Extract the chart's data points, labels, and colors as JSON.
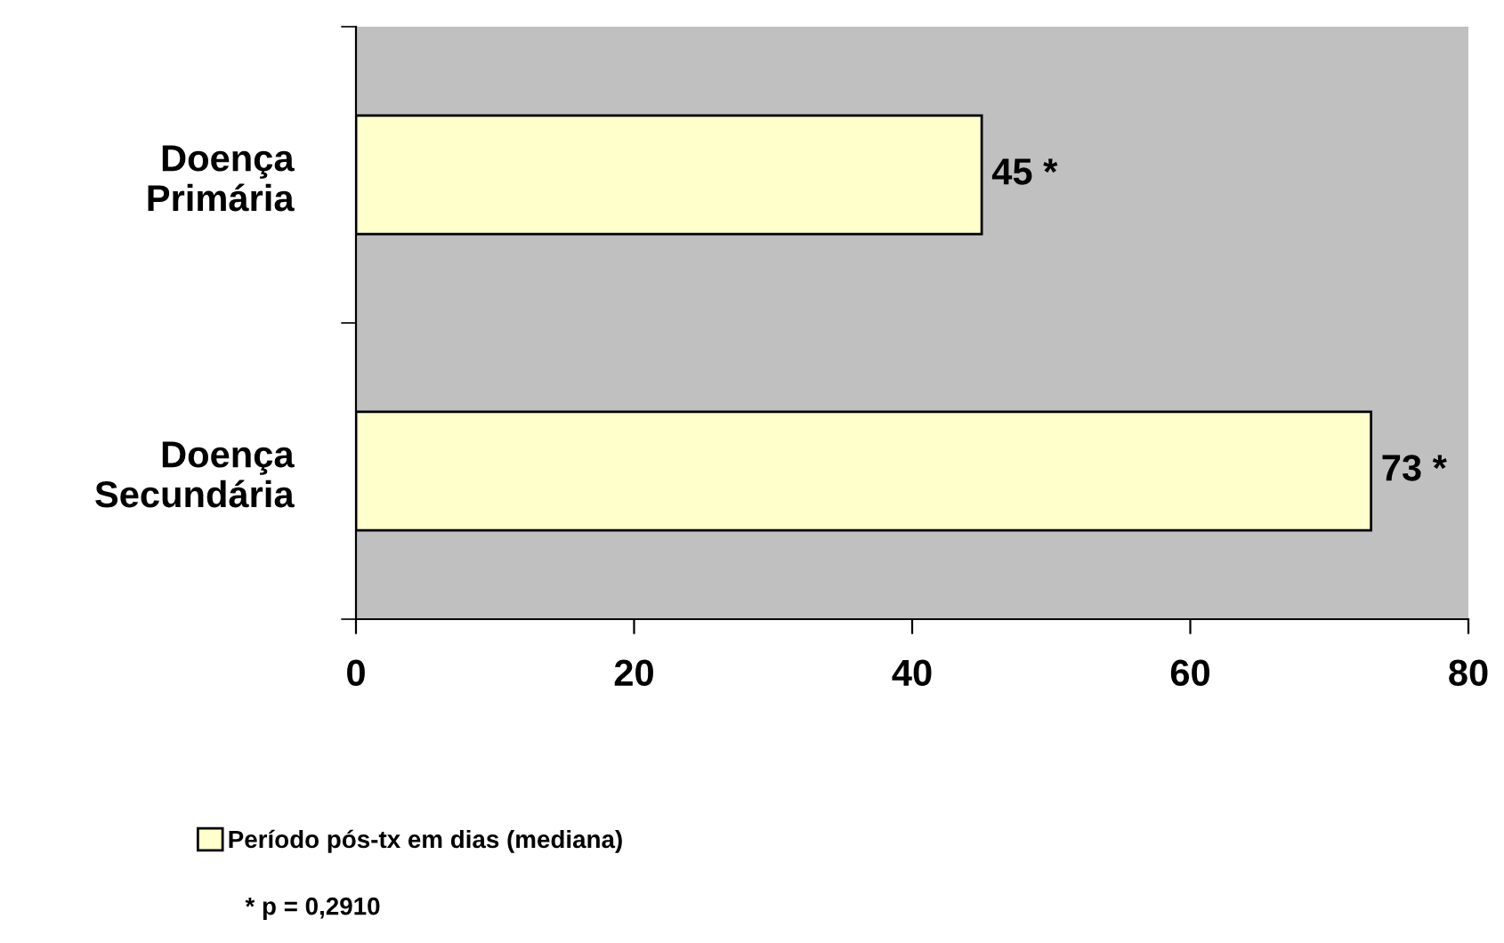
{
  "chart_data": {
    "type": "bar",
    "orientation": "horizontal",
    "categories": [
      "Doença\nPrimária",
      "Doença\nSecundária"
    ],
    "series": [
      {
        "name": "Período pós-tx em dias (mediana)",
        "color": "#ffffcc",
        "values": [
          45,
          73
        ],
        "value_labels": [
          "45 *",
          "73 *"
        ]
      }
    ],
    "xlim": [
      0,
      80
    ],
    "xticks": [
      0,
      20,
      40,
      60,
      80
    ],
    "grid": false,
    "legend": "bottom",
    "annotations": [
      "* p = 0,2910"
    ]
  }
}
